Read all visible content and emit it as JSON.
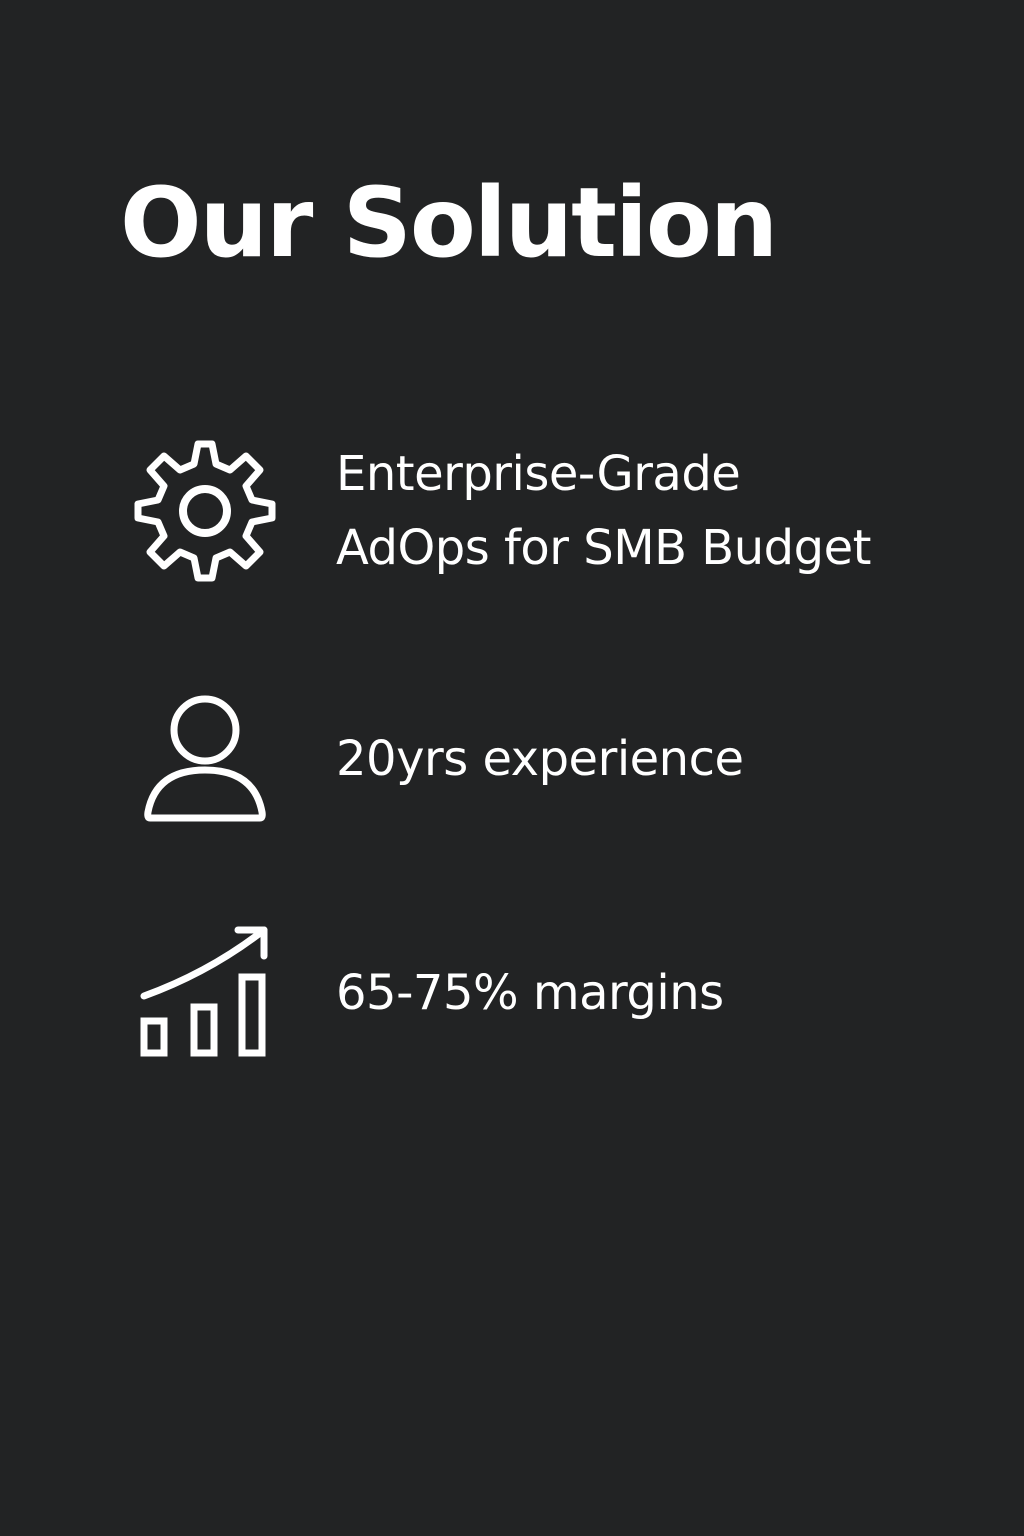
{
  "slide": {
    "title": "Our Solution",
    "background_color": "#222324",
    "text_color": "#ffffff",
    "items": [
      {
        "icon": "gear-icon",
        "lines": [
          "Enterprise-Grade",
          "AdOps for SMB Budget"
        ]
      },
      {
        "icon": "person-icon",
        "lines": [
          "20yrs experience"
        ]
      },
      {
        "icon": "growth-chart-icon",
        "lines": [
          "65-75% margins"
        ]
      }
    ]
  }
}
